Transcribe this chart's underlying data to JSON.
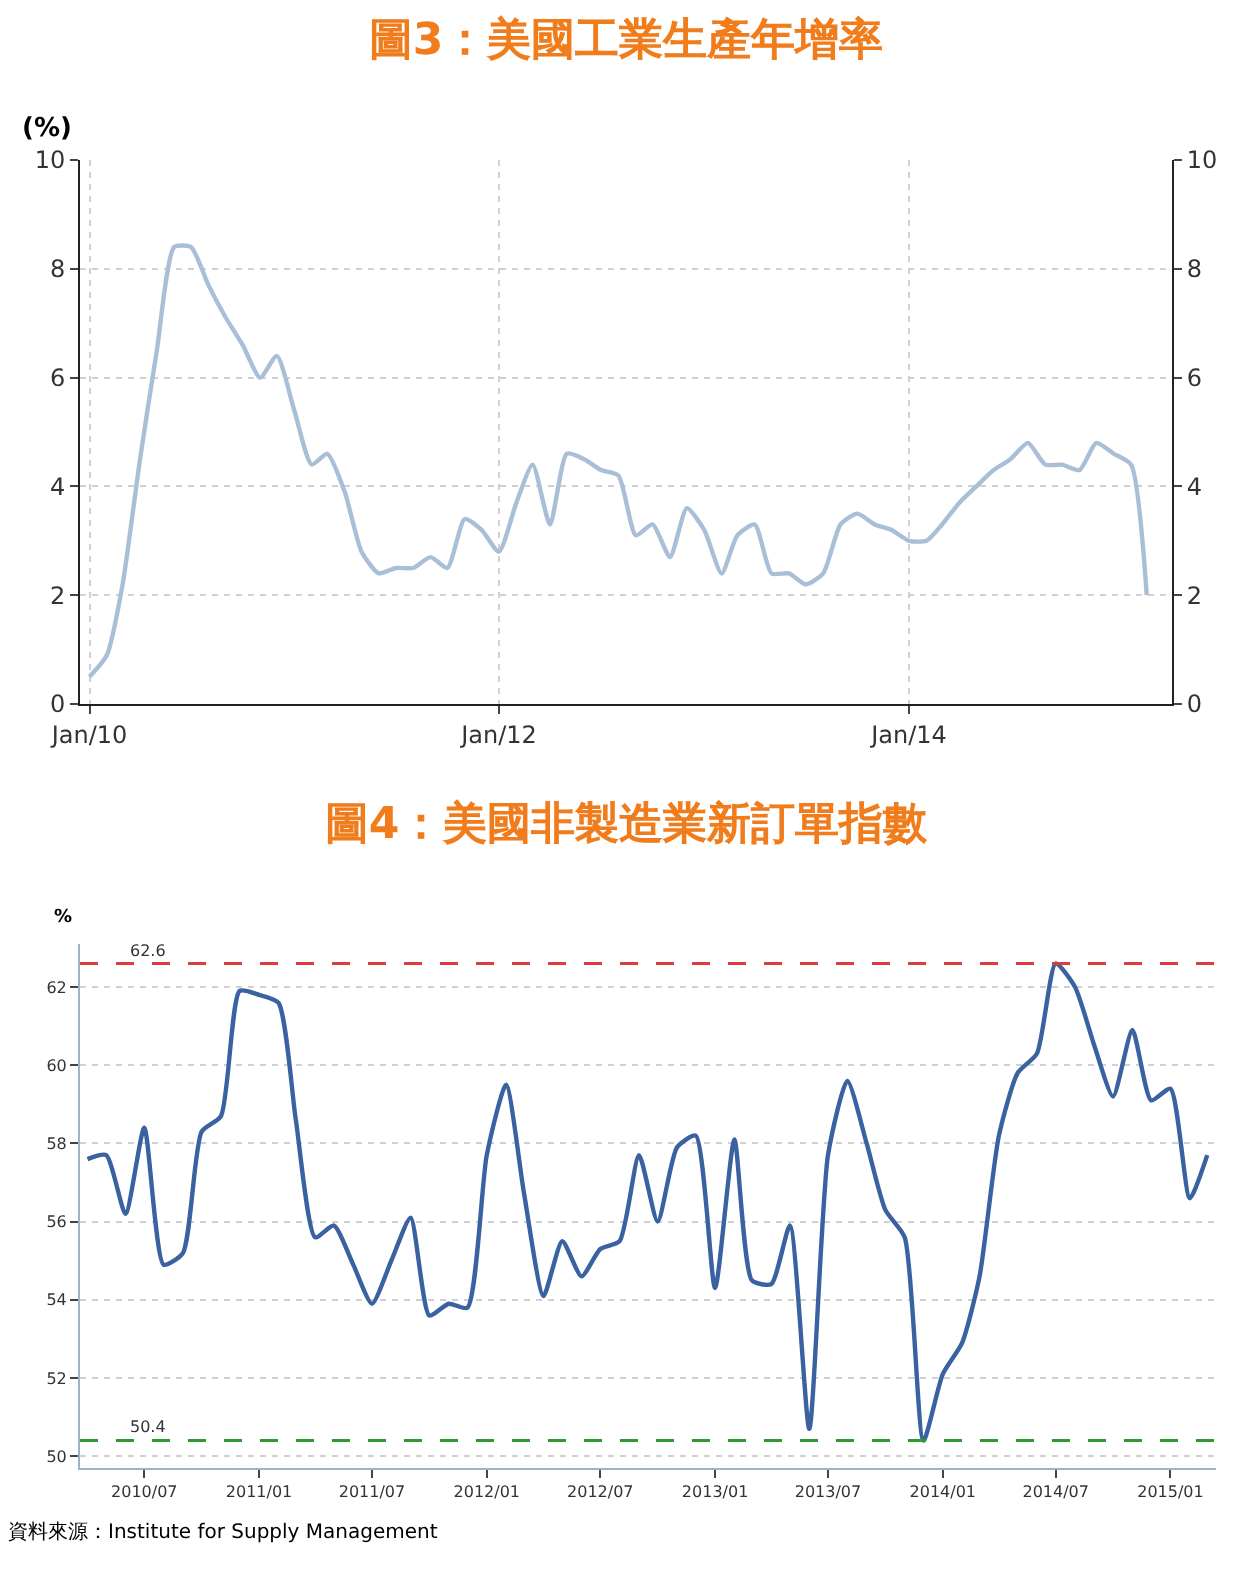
{
  "chart_data": [
    {
      "type": "line",
      "title": "圖3：美國工業生產年增率",
      "ylabel": "(%)",
      "x": [
        "2010-01",
        "2010-02",
        "2010-03",
        "2010-04",
        "2010-05",
        "2010-06",
        "2010-07",
        "2010-08",
        "2010-09",
        "2010-10",
        "2010-11",
        "2010-12",
        "2011-01",
        "2011-02",
        "2011-03",
        "2011-04",
        "2011-05",
        "2011-06",
        "2011-07",
        "2011-08",
        "2011-09",
        "2011-10",
        "2011-11",
        "2011-12",
        "2012-01",
        "2012-02",
        "2012-03",
        "2012-04",
        "2012-05",
        "2012-06",
        "2012-07",
        "2012-08",
        "2012-09",
        "2012-10",
        "2012-11",
        "2012-12",
        "2013-01",
        "2013-02",
        "2013-03",
        "2013-04",
        "2013-05",
        "2013-06",
        "2013-07",
        "2013-08",
        "2013-09",
        "2013-10",
        "2013-11",
        "2013-12",
        "2014-01",
        "2014-02",
        "2014-03",
        "2014-04",
        "2014-05",
        "2014-06",
        "2014-07",
        "2014-08",
        "2014-09",
        "2014-10",
        "2014-11",
        "2014-12",
        "2015-01",
        "2015-02",
        "2015-03"
      ],
      "series": [
        {
          "color": "#a9bfd8",
          "values": [
            0.5,
            0.9,
            2.2,
            4.5,
            6.5,
            8.4,
            8.4,
            7.7,
            7.1,
            6.6,
            6.0,
            6.4,
            5.4,
            4.4,
            4.6,
            3.9,
            2.8,
            2.4,
            2.5,
            2.5,
            2.7,
            2.5,
            3.4,
            3.2,
            2.8,
            3.7,
            4.4,
            3.3,
            4.6,
            4.5,
            4.3,
            4.2,
            3.1,
            3.3,
            2.7,
            3.6,
            3.2,
            2.4,
            3.1,
            3.3,
            2.4,
            2.4,
            2.2,
            2.4,
            3.3,
            3.5,
            3.3,
            3.2,
            3.0,
            3.0,
            3.3,
            3.7,
            4.0,
            4.3,
            4.5,
            4.8,
            4.4,
            4.4,
            4.3,
            4.8,
            4.6,
            4.4,
            2.0
          ]
        }
      ],
      "xlim": [
        "2009-12-15",
        "2015-04-15"
      ],
      "xticks": [
        {
          "value": "2010-01",
          "label": "Jan/10"
        },
        {
          "value": "2012-01",
          "label": "Jan/12"
        },
        {
          "value": "2014-01",
          "label": "Jan/14"
        }
      ],
      "ylim": [
        0,
        10
      ],
      "yticks": [
        0,
        2,
        4,
        6,
        8,
        10
      ],
      "y2lim": [
        0,
        10
      ],
      "y2ticks": [
        0,
        2,
        4,
        6,
        8,
        10
      ],
      "grid": true,
      "marker": "none",
      "line_style": "solid"
    },
    {
      "type": "line",
      "title": "圖4：美國非製造業新訂單指數",
      "ylabel": "%",
      "annotations": [
        "資料來源：Institute for Supply Management"
      ],
      "x": [
        "2010-04",
        "2010-05",
        "2010-06",
        "2010-07",
        "2010-08",
        "2010-09",
        "2010-10",
        "2010-11",
        "2010-12",
        "2011-01",
        "2011-02",
        "2011-03",
        "2011-04",
        "2011-05",
        "2011-06",
        "2011-07",
        "2011-08",
        "2011-09",
        "2011-10",
        "2011-11",
        "2011-12",
        "2012-01",
        "2012-02",
        "2012-03",
        "2012-04",
        "2012-05",
        "2012-06",
        "2012-07",
        "2012-08",
        "2012-09",
        "2012-10",
        "2012-11",
        "2012-12",
        "2013-01",
        "2013-02",
        "2013-03",
        "2013-04",
        "2013-05",
        "2013-06",
        "2013-07",
        "2013-08",
        "2013-09",
        "2013-10",
        "2013-11",
        "2013-12",
        "2014-01",
        "2014-02",
        "2014-03",
        "2014-04",
        "2014-05",
        "2014-06",
        "2014-07",
        "2014-08",
        "2014-09",
        "2014-10",
        "2014-11",
        "2014-12",
        "2015-01",
        "2015-02",
        "2015-03"
      ],
      "series": [
        {
          "color": "#3a62a0",
          "values": [
            57.6,
            57.7,
            56.2,
            58.4,
            54.9,
            55.2,
            58.3,
            58.7,
            61.9,
            61.8,
            61.6,
            58.6,
            55.6,
            55.9,
            54.9,
            53.9,
            55.0,
            56.1,
            53.6,
            53.9,
            53.8,
            57.7,
            59.5,
            56.7,
            54.1,
            55.5,
            54.6,
            55.3,
            55.5,
            57.7,
            56.0,
            57.9,
            58.2,
            54.3,
            58.1,
            54.5,
            54.4,
            55.9,
            50.7,
            57.7,
            59.6,
            58.0,
            56.3,
            55.6,
            50.4,
            52.1,
            52.9,
            54.6,
            58.2,
            59.8,
            60.3,
            62.6,
            62.0,
            60.5,
            59.2,
            60.9,
            59.1,
            59.4,
            56.6,
            57.7
          ]
        }
      ],
      "xlim": [
        "2010-03-20",
        "2015-03-15"
      ],
      "xticks": [
        {
          "value": "2010-07",
          "label": "2010/07"
        },
        {
          "value": "2011-01",
          "label": "2011/01"
        },
        {
          "value": "2011-07",
          "label": "2011/07"
        },
        {
          "value": "2012-01",
          "label": "2012/01"
        },
        {
          "value": "2012-07",
          "label": "2012/07"
        },
        {
          "value": "2013-01",
          "label": "2013/01"
        },
        {
          "value": "2013-07",
          "label": "2013/07"
        },
        {
          "value": "2014-01",
          "label": "2014/01"
        },
        {
          "value": "2014-07",
          "label": "2014/07"
        },
        {
          "value": "2015-01",
          "label": "2015/01"
        }
      ],
      "ylim": [
        49.7,
        63.1
      ],
      "yticks": [
        50,
        52,
        54,
        56,
        58,
        60,
        62
      ],
      "ref_lines": [
        {
          "axis": "y",
          "value": 62.6,
          "label": "62.6",
          "color": "#e03a3a",
          "line_style": "dashed"
        },
        {
          "axis": "y",
          "value": 50.4,
          "label": "50.4",
          "color": "#2f9a2f",
          "line_style": "dashed"
        }
      ],
      "grid": "y",
      "marker": "none",
      "line_style": "solid"
    }
  ]
}
